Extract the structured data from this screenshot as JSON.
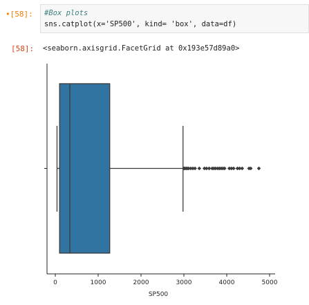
{
  "input_cell": {
    "prompt": "[58]:",
    "code_comment": "#Box plots",
    "code_line": "sns.catplot(x='SP500', kind= 'box', data=df)"
  },
  "output_cell": {
    "prompt": "[58]:",
    "text": "<seaborn.axisgrid.FacetGrid at 0x193e57d89a0>"
  },
  "chart_data": {
    "type": "box",
    "xlabel": "SP500",
    "ylabel": "",
    "xlim": [
      -200,
      5000
    ],
    "xticks": [
      0,
      1000,
      2000,
      3000,
      4000,
      5000
    ],
    "box_color": "#3274a1",
    "whisker_low": 40,
    "q1": 100,
    "median": 340,
    "q3": 1270,
    "whisker_high": 2980,
    "outliers": [
      3000,
      3020,
      3050,
      3080,
      3110,
      3160,
      3210,
      3260,
      3360,
      3480,
      3530,
      3590,
      3660,
      3700,
      3740,
      3790,
      3830,
      3870,
      3910,
      3950,
      4060,
      4110,
      4160,
      4250,
      4300,
      4360,
      4520,
      4560,
      4750
    ]
  }
}
